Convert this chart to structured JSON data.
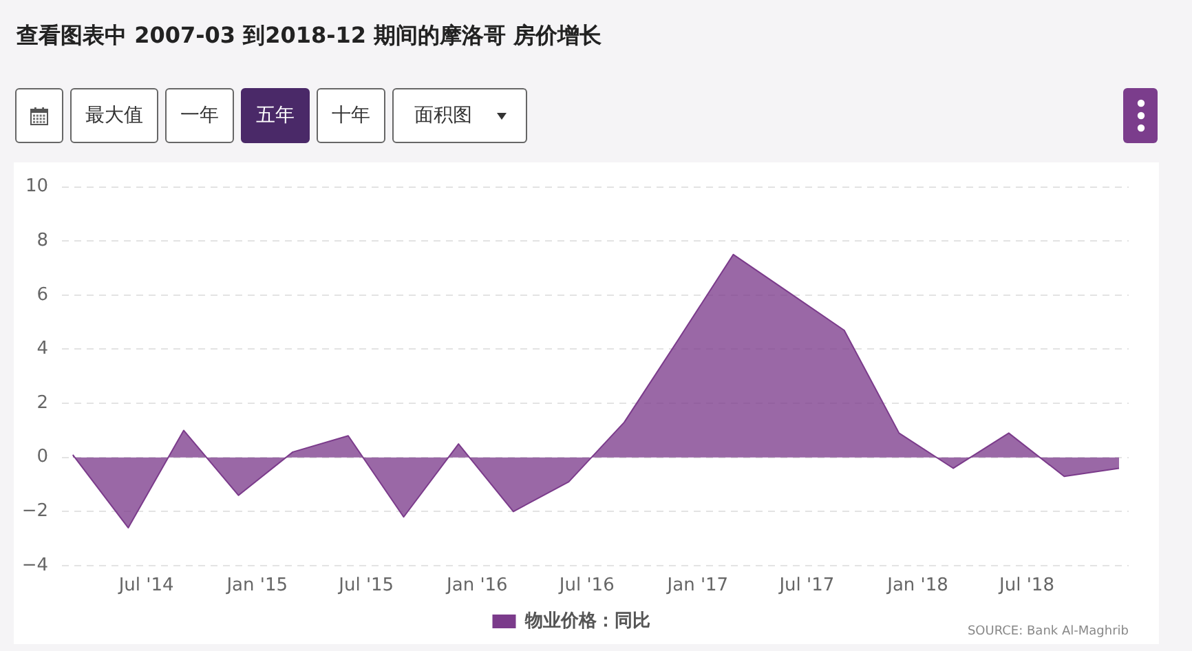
{
  "chart_data": {
    "type": "area",
    "title": "查看图表中 2007-03 到2018-12 期间的摩洛哥 房价增长",
    "x": [
      "2014-03",
      "2014-06",
      "2014-09",
      "2014-12",
      "2015-03",
      "2015-06",
      "2015-09",
      "2015-12",
      "2016-03",
      "2016-06",
      "2016-09",
      "2016-12",
      "2017-03",
      "2017-06",
      "2017-09",
      "2017-12",
      "2018-03",
      "2018-06",
      "2018-09",
      "2018-12"
    ],
    "series": [
      {
        "name": "物业价格：同比",
        "color": "#7b3b8b",
        "values": [
          0.1,
          -2.6,
          1.0,
          -1.4,
          0.2,
          0.8,
          -2.2,
          0.5,
          -2.0,
          -0.9,
          1.3,
          4.4,
          7.5,
          6.1,
          4.7,
          0.9,
          -0.4,
          0.9,
          -0.7,
          -0.4
        ]
      }
    ],
    "xlim": [
      "2014-02-11",
      "2018-12-17"
    ],
    "xticks": [
      {
        "value": "2014-07",
        "label": "Jul '14"
      },
      {
        "value": "2015-01",
        "label": "Jan '15"
      },
      {
        "value": "2015-07",
        "label": "Jul '15"
      },
      {
        "value": "2016-01",
        "label": "Jan '16"
      },
      {
        "value": "2016-07",
        "label": "Jul '16"
      },
      {
        "value": "2017-01",
        "label": "Jan '17"
      },
      {
        "value": "2017-07",
        "label": "Jul '17"
      },
      {
        "value": "2018-01",
        "label": "Jan '18"
      },
      {
        "value": "2018-07",
        "label": "Jul '18"
      }
    ],
    "ylim": [
      -4,
      10
    ],
    "yticks": [
      -4,
      -2,
      0,
      2,
      4,
      6,
      8,
      10
    ],
    "grid": "y",
    "legend": "bottom",
    "marker": "none",
    "annotations": [
      "最大值",
      "一年",
      "五年",
      "十年",
      "面积图",
      "SOURCE: Bank Al-Maghrib"
    ]
  }
}
